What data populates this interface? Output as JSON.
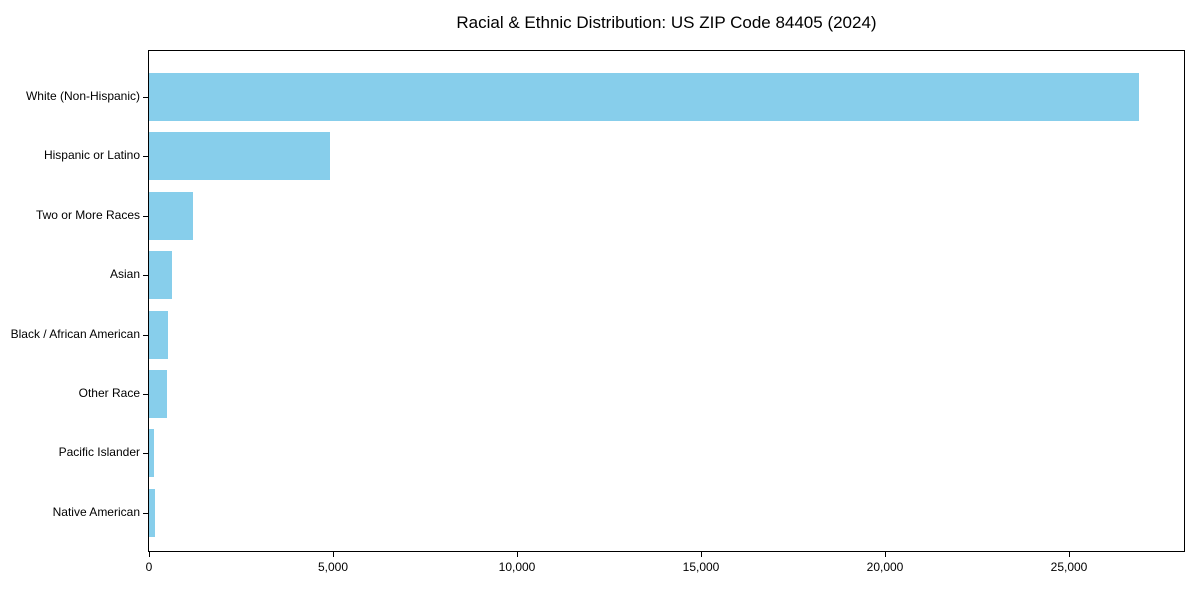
{
  "chart_data": {
    "type": "bar",
    "orientation": "horizontal",
    "title": "Racial & Ethnic Distribution: US ZIP Code 84405 (2024)",
    "categories": [
      "White (Non-Hispanic)",
      "Hispanic or Latino",
      "Two or More Races",
      "Asian",
      "Black / African American",
      "Other Race",
      "Pacific Islander",
      "Native American"
    ],
    "values": [
      26900,
      4920,
      1200,
      620,
      520,
      480,
      140,
      160
    ],
    "xlabel": "",
    "ylabel": "",
    "xlim": [
      0,
      28125
    ],
    "xticks": [
      0,
      5000,
      10000,
      15000,
      20000,
      25000
    ],
    "xtick_labels": [
      "0",
      "5,000",
      "10,000",
      "15,000",
      "20,000",
      "25,000"
    ],
    "grid": false,
    "legend": "none",
    "bar_color": "#87CEEB",
    "background_color": "#FFFFFF",
    "axis_color": "#000000",
    "text_color": "#000000"
  }
}
